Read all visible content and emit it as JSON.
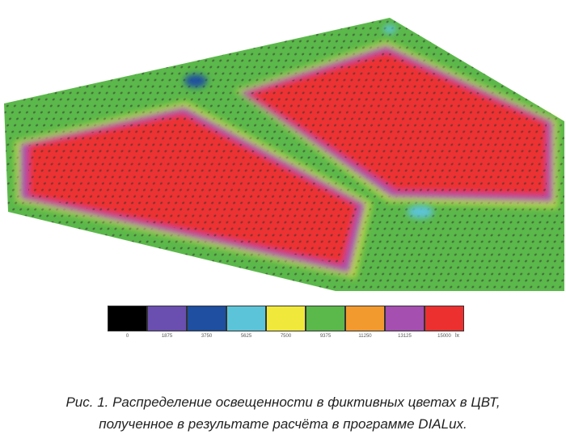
{
  "figure": {
    "legend": {
      "colors": [
        "#000000",
        "#6a4fb0",
        "#1e4fa0",
        "#5cc4d8",
        "#f0e83a",
        "#5bb84a",
        "#f39a2e",
        "#a54fb0",
        "#ec3030"
      ],
      "values": [
        "0",
        "1875",
        "3750",
        "5625",
        "7500",
        "9375",
        "11250",
        "13125",
        "15000"
      ],
      "unit": "lx"
    },
    "caption_line1": "Рис. 1. Распределение освещенности в фиктивных цветах в ЦВТ,",
    "caption_line2": "полученное в результате расчёта в программе DIALux."
  }
}
